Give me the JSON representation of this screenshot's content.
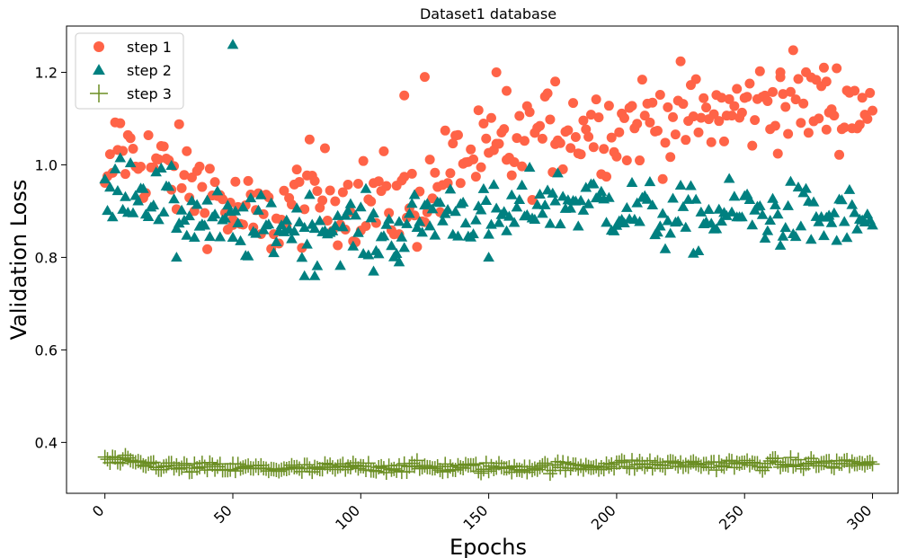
{
  "chart_data": {
    "type": "scatter",
    "title": "Dataset1 database",
    "xlabel": "Epochs",
    "ylabel": "Validation Loss",
    "xlim": [
      -15,
      310
    ],
    "ylim": [
      0.29,
      1.3
    ],
    "x_ticks": [
      0,
      50,
      100,
      150,
      200,
      250,
      300
    ],
    "x_tick_labels": [
      "0",
      "50",
      "100",
      "150",
      "200",
      "250",
      "300"
    ],
    "y_ticks": [
      0.4,
      0.6,
      0.8,
      1.0,
      1.2
    ],
    "y_tick_labels": [
      "0.4",
      "0.6",
      "0.8",
      "1.0",
      "1.2"
    ],
    "x_tick_rotation": 45,
    "grid": false,
    "legend_position": "top-left",
    "series": [
      {
        "name": "step 1",
        "marker": "circle",
        "color": "#ff6347",
        "anchors": [
          [
            0,
            0.91
          ],
          [
            5,
            1.06
          ],
          [
            10,
            1.02
          ],
          [
            20,
            1.0
          ],
          [
            30,
            0.97
          ],
          [
            40,
            0.95
          ],
          [
            50,
            0.9
          ],
          [
            60,
            0.87
          ],
          [
            70,
            0.9
          ],
          [
            80,
            0.94
          ],
          [
            90,
            0.93
          ],
          [
            100,
            0.92
          ],
          [
            110,
            0.92
          ],
          [
            120,
            0.91
          ],
          [
            130,
            0.96
          ],
          [
            140,
            1.02
          ],
          [
            150,
            1.01
          ],
          [
            160,
            1.03
          ],
          [
            170,
            1.06
          ],
          [
            180,
            1.08
          ],
          [
            190,
            1.09
          ],
          [
            200,
            1.08
          ],
          [
            210,
            1.1
          ],
          [
            220,
            1.1
          ],
          [
            230,
            1.1
          ],
          [
            240,
            1.11
          ],
          [
            250,
            1.12
          ],
          [
            260,
            1.14
          ],
          [
            270,
            1.14
          ],
          [
            280,
            1.13
          ],
          [
            290,
            1.13
          ],
          [
            300,
            1.13
          ]
        ],
        "noise": 0.05,
        "extra_points": [
          [
            50,
            0.87
          ],
          [
            117,
            1.15
          ],
          [
            125,
            1.19
          ],
          [
            153,
            1.2
          ],
          [
            157,
            1.16
          ],
          [
            176,
            1.18
          ],
          [
            264,
            1.2
          ],
          [
            282,
            1.18
          ]
        ]
      },
      {
        "name": "step 2",
        "marker": "triangle",
        "color": "#008080",
        "anchors": [
          [
            0,
            0.9
          ],
          [
            5,
            0.96
          ],
          [
            10,
            0.96
          ],
          [
            20,
            0.93
          ],
          [
            30,
            0.9
          ],
          [
            40,
            0.88
          ],
          [
            50,
            0.86
          ],
          [
            60,
            0.86
          ],
          [
            70,
            0.87
          ],
          [
            80,
            0.87
          ],
          [
            90,
            0.87
          ],
          [
            100,
            0.86
          ],
          [
            110,
            0.85
          ],
          [
            120,
            0.87
          ],
          [
            130,
            0.9
          ],
          [
            140,
            0.9
          ],
          [
            150,
            0.88
          ],
          [
            160,
            0.89
          ],
          [
            170,
            0.93
          ],
          [
            180,
            0.92
          ],
          [
            190,
            0.92
          ],
          [
            200,
            0.91
          ],
          [
            210,
            0.9
          ],
          [
            220,
            0.88
          ],
          [
            230,
            0.88
          ],
          [
            240,
            0.89
          ],
          [
            250,
            0.9
          ],
          [
            260,
            0.89
          ],
          [
            270,
            0.89
          ],
          [
            280,
            0.88
          ],
          [
            290,
            0.88
          ],
          [
            300,
            0.88
          ]
        ],
        "noise": 0.035,
        "extra_points": [
          [
            50,
            1.26
          ],
          [
            28,
            0.8
          ],
          [
            78,
            0.76
          ],
          [
            82,
            0.76
          ],
          [
            105,
            0.77
          ],
          [
            115,
            0.79
          ],
          [
            150,
            0.8
          ]
        ]
      },
      {
        "name": "step 3",
        "marker": "plus",
        "color": "#6b8e23",
        "anchors": [
          [
            0,
            0.362
          ],
          [
            30,
            0.345
          ],
          [
            60,
            0.344
          ],
          [
            80,
            0.342
          ],
          [
            100,
            0.347
          ],
          [
            150,
            0.345
          ],
          [
            180,
            0.347
          ],
          [
            200,
            0.352
          ],
          [
            250,
            0.353
          ],
          [
            300,
            0.355
          ]
        ],
        "noise": 0.006,
        "extra_points": []
      }
    ]
  }
}
